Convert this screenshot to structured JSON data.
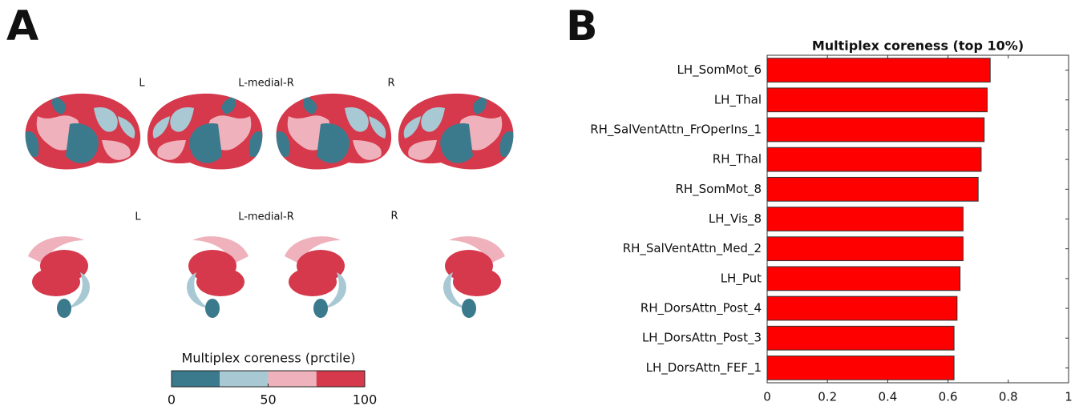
{
  "panel_a": {
    "label": "A",
    "cortex_labels": [
      "L",
      "L-medial-R",
      "R"
    ],
    "subcortex_labels": [
      "L",
      "L-medial-R",
      "R"
    ],
    "colorbar": {
      "title": "Multiplex coreness (prctile)",
      "lim": [
        0,
        100
      ],
      "ticks": [
        0,
        50,
        100
      ],
      "colors": [
        "#3b7a8d",
        "#a8c9d4",
        "#efb1bb",
        "#d5394b"
      ]
    }
  },
  "panel_b": {
    "label": "B"
  },
  "chart_data": {
    "type": "bar",
    "orientation": "horizontal",
    "title": "Multiplex coreness (top 10%)",
    "categories": [
      "LH_SomMot_6",
      "LH_Thal",
      "RH_SalVentAttn_FrOperIns_1",
      "RH_Thal",
      "RH_SomMot_8",
      "LH_Vis_8",
      "RH_SalVentAttn_Med_2",
      "LH_Put",
      "RH_DorsAttn_Post_4",
      "LH_DorsAttn_Post_3",
      "LH_DorsAttn_FEF_1"
    ],
    "values": [
      0.74,
      0.73,
      0.72,
      0.71,
      0.7,
      0.65,
      0.65,
      0.64,
      0.63,
      0.62,
      0.62
    ],
    "color": "#ff0000",
    "xlim": [
      0,
      1
    ],
    "xticks": [
      0,
      0.2,
      0.4,
      0.6,
      0.8,
      1
    ],
    "grid": false
  }
}
